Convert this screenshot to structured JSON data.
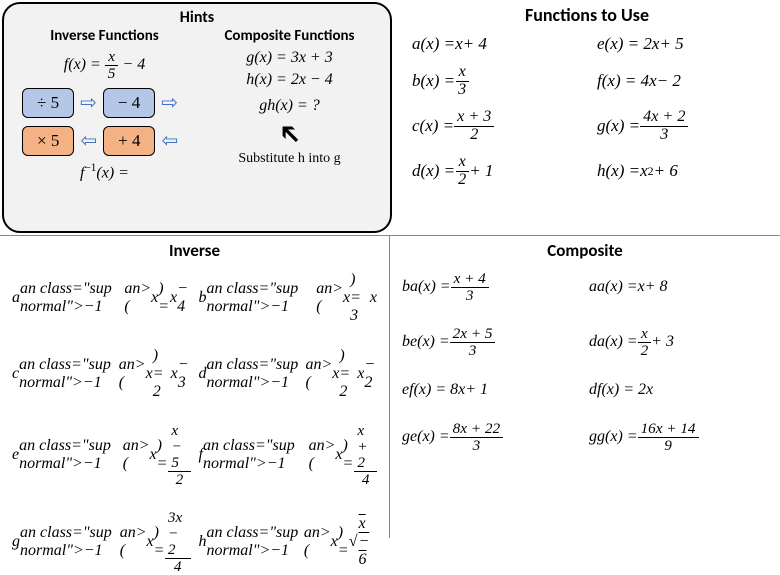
{
  "colors": {
    "panel_bg": "#f2f2f2",
    "panel_border": "#000000",
    "box_blue": "#b4c7e7",
    "box_orange": "#f4b183",
    "arrow_blue": "#4472c4",
    "divider": "#888888",
    "text": "#000000",
    "page_bg": "#ffffff"
  },
  "fonts": {
    "heading_family": "Calibri, sans-serif",
    "math_family": "Cambria Math, Times New Roman, serif",
    "heading_size_pt": 12,
    "math_size_pt": 12
  },
  "hints": {
    "title": "Hints",
    "inverse": {
      "title": "Inverse Functions",
      "eq_label": "f(x) =",
      "eq_frac_num": "x",
      "eq_frac_den": "5",
      "eq_tail": "− 4",
      "op_div": "÷ 5",
      "op_minus": "− 4",
      "op_times": "× 5",
      "op_plus": "+ 4",
      "result_label": "f⁻¹(x) ="
    },
    "composite": {
      "title": "Composite Functions",
      "g_eq": "g(x) = 3x + 3",
      "h_eq": "h(x) = 2x − 4",
      "gh_eq": "gh(x) = ?",
      "sub_text": "Substitute h into g"
    }
  },
  "functions_to_use": {
    "title": "Functions to Use",
    "items": [
      {
        "label": "a(x) = x + 4",
        "type": "plain"
      },
      {
        "label": "e(x) = 2x + 5",
        "type": "plain"
      },
      {
        "label": "b(x) =",
        "frac_num": "x",
        "frac_den": "3",
        "type": "frac"
      },
      {
        "label": "f(x) = 4x − 2",
        "type": "plain"
      },
      {
        "label": "c(x) =",
        "frac_num": "x + 3",
        "frac_den": "2",
        "type": "frac"
      },
      {
        "label": "g(x) =",
        "frac_num": "4x + 2",
        "frac_den": "3",
        "type": "frac"
      },
      {
        "label": "d(x) =",
        "frac_num": "x",
        "frac_den": "2",
        "tail": "+ 1",
        "type": "frac_tail"
      },
      {
        "label": "h(x) = x² + 6",
        "type": "plain"
      }
    ]
  },
  "inverse_answers": {
    "title": "Inverse",
    "items": [
      {
        "lhs": "a⁻¹(x) =",
        "rhs": "x − 4",
        "type": "plain"
      },
      {
        "lhs": "b⁻¹(x) =",
        "rhs": "3x",
        "type": "plain"
      },
      {
        "lhs": "c⁻¹(x) =",
        "rhs": "2x − 3",
        "type": "plain"
      },
      {
        "lhs": "d⁻¹(x) =",
        "rhs": "2x − 2",
        "type": "plain"
      },
      {
        "lhs": "e⁻¹(x) =",
        "frac_num": "x − 5",
        "frac_den": "2",
        "type": "frac"
      },
      {
        "lhs": "f⁻¹(x) =",
        "frac_num": "x + 2",
        "frac_den": "4",
        "type": "frac"
      },
      {
        "lhs": "g⁻¹(x) =",
        "frac_num": "3x − 2",
        "frac_den": "4",
        "type": "frac"
      },
      {
        "lhs": "h⁻¹(x) =",
        "rhs_sqrt": "x − 6",
        "type": "sqrt"
      }
    ]
  },
  "composite_answers": {
    "title": "Composite",
    "items": [
      {
        "lhs": "ba(x) =",
        "frac_num": "x + 4",
        "frac_den": "3",
        "type": "frac"
      },
      {
        "lhs": "aa(x) =",
        "rhs": "x + 8",
        "type": "plain"
      },
      {
        "lhs": "be(x) =",
        "frac_num": "2x + 5",
        "frac_den": "3",
        "type": "frac"
      },
      {
        "lhs": "da(x) =",
        "frac_num": "x",
        "frac_den": "2",
        "tail": "+ 3",
        "type": "frac_tail"
      },
      {
        "lhs": "ef(x) =",
        "rhs": "8x + 1",
        "type": "plain"
      },
      {
        "lhs": "df(x) =",
        "rhs": "2x",
        "type": "plain"
      },
      {
        "lhs": "ge(x) =",
        "frac_num": "8x + 22",
        "frac_den": "3",
        "type": "frac"
      },
      {
        "lhs": "gg(x) =",
        "frac_num": "16x + 14",
        "frac_den": "9",
        "type": "frac"
      }
    ]
  }
}
